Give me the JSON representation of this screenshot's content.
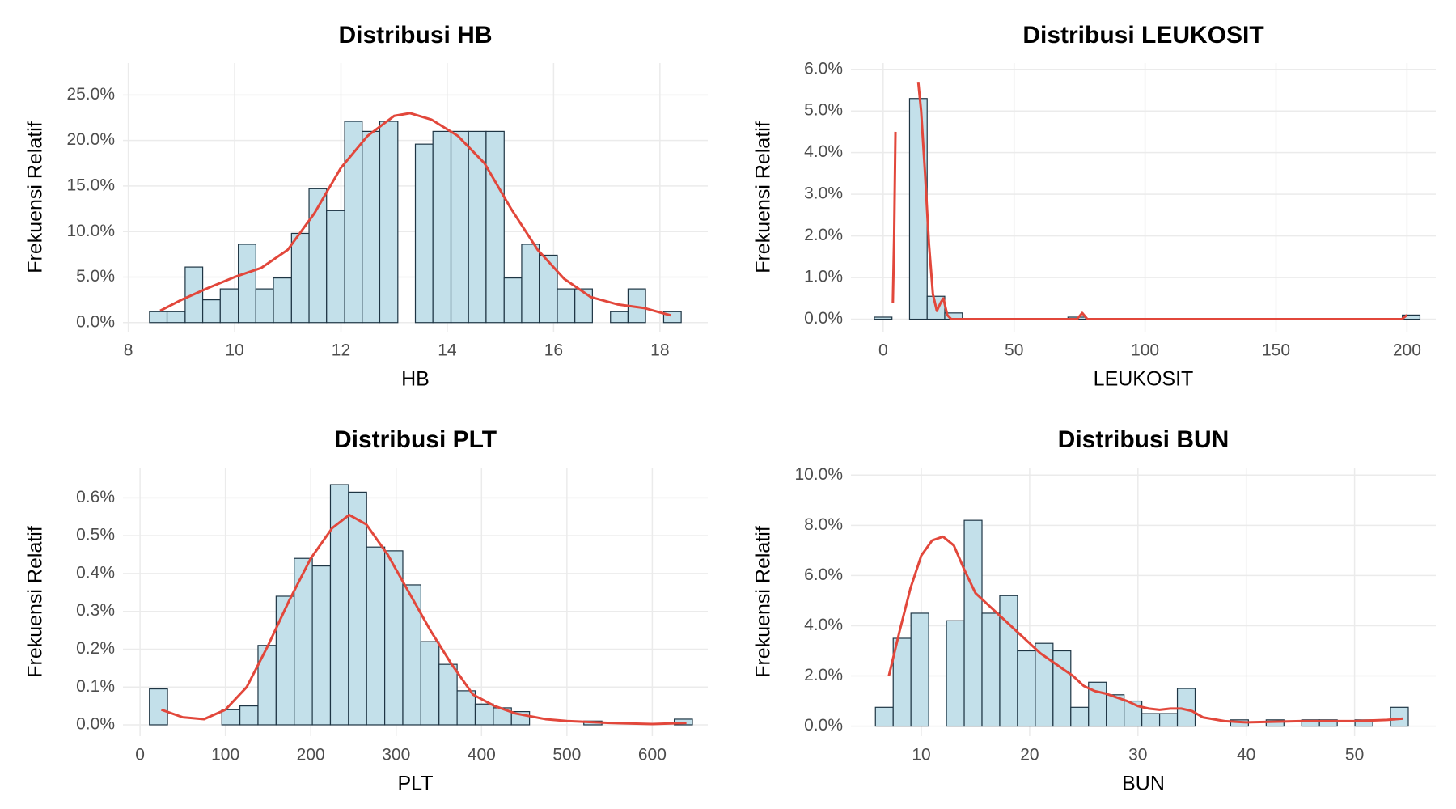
{
  "chart_data": [
    {
      "type": "histogram",
      "title": "Distribusi HB",
      "x_label": "HB",
      "y_label": "Frekuensi Relatif",
      "bins": [
        8.4,
        8.73,
        9.07,
        9.4,
        9.73,
        10.07,
        10.4,
        10.73,
        11.07,
        11.4,
        11.73,
        12.07,
        12.4,
        12.73,
        13.07,
        13.4,
        13.73,
        14.07,
        14.4,
        14.73,
        15.07,
        15.4,
        15.73,
        16.07,
        16.4,
        16.73,
        17.07,
        17.4,
        17.73,
        18.07,
        18.4
      ],
      "values": [
        1.2,
        1.2,
        6.1,
        2.5,
        3.7,
        8.6,
        3.7,
        4.9,
        9.8,
        14.7,
        12.3,
        22.1,
        21,
        22.1,
        0,
        19.6,
        21,
        21,
        21,
        21,
        4.9,
        8.6,
        7.4,
        3.7,
        3.7,
        0,
        1.2,
        3.7,
        0,
        1.2
      ],
      "color": "#c3e0ea",
      "edge_color": "#1e3544",
      "line": {
        "color": "#e2473b",
        "x": [
          8.6,
          9,
          9.5,
          10,
          10.5,
          11,
          11.5,
          12,
          12.5,
          13,
          13.3,
          13.7,
          14.2,
          14.7,
          15.2,
          15.7,
          16.2,
          16.7,
          17.2,
          17.7,
          18.2
        ],
        "values": [
          1.3,
          2.5,
          3.8,
          5,
          6,
          8,
          12,
          17,
          20.5,
          22.7,
          23,
          22.3,
          20.5,
          17.5,
          12.5,
          8,
          4.8,
          2.8,
          2,
          1.6,
          0.8
        ]
      },
      "xlim": [
        7.9,
        18.9
      ],
      "ylim": [
        -1,
        28.5
      ],
      "xticks": [
        8,
        10,
        12,
        14,
        16,
        18
      ],
      "yticks": [
        {
          "value": 0,
          "label": "0.0%"
        },
        {
          "value": 5,
          "label": "5.0%"
        },
        {
          "value": 10,
          "label": "10.0%"
        },
        {
          "value": 15,
          "label": "15.0%"
        },
        {
          "value": 20,
          "label": "20.0%"
        },
        {
          "value": 25,
          "label": "25.0%"
        }
      ],
      "grid": true
    },
    {
      "type": "histogram",
      "title": "Distribusi LEUKOSIT",
      "x_label": "LEUKOSIT",
      "y_label": "Frekuensi Relatif",
      "bins": [
        -3.36,
        3.36,
        10.08,
        16.8,
        23.52,
        30.24,
        36.96,
        43.68,
        50.4,
        57.12,
        63.84,
        70.56,
        77.28,
        84,
        90.72,
        97.44,
        104.16,
        110.88,
        117.6,
        124.32,
        131.04,
        137.76,
        144.48,
        151.2,
        157.92,
        164.64,
        171.36,
        178.08,
        184.8,
        191.52,
        198.24,
        204.96
      ],
      "values": [
        0.05,
        0,
        5.3,
        0.55,
        0.15,
        0,
        0,
        0,
        0,
        0,
        0,
        0.05,
        0,
        0,
        0,
        0,
        0,
        0,
        0,
        0,
        0,
        0,
        0,
        0,
        0,
        0,
        0,
        0,
        0,
        0,
        0.1
      ],
      "color": "#c3e0ea",
      "edge_color": "#1e3544",
      "line": {
        "color": "#e2473b",
        "x": [
          3.7,
          4.2,
          4.7,
          null,
          13.4,
          14.5,
          16,
          17.5,
          19,
          20.5,
          22,
          23,
          24.5,
          26,
          50,
          74,
          76,
          78,
          150,
          198,
          200
        ],
        "values": [
          0.4,
          2,
          4.5,
          null,
          5.7,
          5,
          3.5,
          1.8,
          0.6,
          0.2,
          0.4,
          0.5,
          0.1,
          0,
          0,
          0,
          0.15,
          0,
          0,
          0,
          0.1
        ]
      },
      "xlim": [
        -12.3,
        211
      ],
      "ylim": [
        -0.3,
        6.15
      ],
      "xticks": [
        0,
        50,
        100,
        150,
        200
      ],
      "yticks": [
        {
          "value": 0,
          "label": "0.0%"
        },
        {
          "value": 1,
          "label": "1.0%"
        },
        {
          "value": 2,
          "label": "2.0%"
        },
        {
          "value": 3,
          "label": "3.0%"
        },
        {
          "value": 4,
          "label": "4.0%"
        },
        {
          "value": 5,
          "label": "5.0%"
        },
        {
          "value": 6,
          "label": "6.0%"
        }
      ],
      "grid": true
    },
    {
      "type": "histogram",
      "title": "Distribusi PLT",
      "x_label": "PLT",
      "y_label": "Frekuensi Relatif",
      "bins": [
        11,
        32.2,
        53.4,
        74.6,
        95.8,
        117,
        138.2,
        159.4,
        180.6,
        201.8,
        223,
        244.2,
        265.4,
        286.6,
        307.8,
        329,
        350.2,
        371.4,
        392.6,
        413.8,
        435,
        456.2,
        477.4,
        498.6,
        519.8,
        541,
        562.2,
        583.4,
        604.6,
        625.8,
        647
      ],
      "values": [
        0.095,
        0,
        0,
        0,
        0.04,
        0.05,
        0.21,
        0.34,
        0.44,
        0.42,
        0.635,
        0.615,
        0.47,
        0.46,
        0.37,
        0.22,
        0.16,
        0.09,
        0.055,
        0.045,
        0.035,
        0,
        0,
        0,
        0.01,
        0,
        0,
        0,
        0,
        0.015
      ],
      "color": "#c3e0ea",
      "edge_color": "#1e3544",
      "line": {
        "color": "#e2473b",
        "x": [
          25,
          50,
          75,
          100,
          125,
          150,
          175,
          200,
          225,
          245,
          265,
          290,
          315,
          340,
          365,
          390,
          415,
          440,
          475,
          500,
          550,
          600,
          640
        ],
        "values": [
          0.04,
          0.02,
          0.015,
          0.04,
          0.1,
          0.21,
          0.33,
          0.44,
          0.52,
          0.555,
          0.53,
          0.45,
          0.35,
          0.25,
          0.16,
          0.08,
          0.05,
          0.03,
          0.015,
          0.01,
          0.005,
          0.002,
          0.005
        ]
      },
      "xlim": [
        -20,
        665
      ],
      "ylim": [
        -0.03,
        0.68
      ],
      "xticks": [
        0,
        100,
        200,
        300,
        400,
        500,
        600
      ],
      "yticks": [
        {
          "value": 0,
          "label": "0.0%"
        },
        {
          "value": 0.1,
          "label": "0.1%"
        },
        {
          "value": 0.2,
          "label": "0.2%"
        },
        {
          "value": 0.3,
          "label": "0.3%"
        },
        {
          "value": 0.4,
          "label": "0.4%"
        },
        {
          "value": 0.5,
          "label": "0.5%"
        },
        {
          "value": 0.6,
          "label": "0.6%"
        }
      ],
      "grid": true
    },
    {
      "type": "histogram",
      "title": "Distribusi BUN",
      "x_label": "BUN",
      "y_label": "Frekuensi Relatif",
      "bins": [
        5.76,
        7.4,
        9.04,
        10.68,
        12.32,
        13.96,
        15.6,
        17.24,
        18.88,
        20.52,
        22.16,
        23.8,
        25.44,
        27.08,
        28.72,
        30.36,
        32,
        33.64,
        35.28,
        36.92,
        38.56,
        40.2,
        41.84,
        43.48,
        45.12,
        46.76,
        48.4,
        50.04,
        51.68,
        53.32,
        54.96
      ],
      "values": [
        0.75,
        3.5,
        4.5,
        0,
        4.2,
        8.2,
        4.5,
        5.2,
        3,
        3.3,
        3,
        0.75,
        1.75,
        1.25,
        1,
        0.5,
        0.5,
        1.5,
        0,
        0,
        0.25,
        0,
        0.25,
        0,
        0.25,
        0.25,
        0,
        0.25,
        0,
        0.75
      ],
      "color": "#c3e0ea",
      "edge_color": "#1e3544",
      "line": {
        "color": "#e2473b",
        "x": [
          7,
          8,
          9,
          10,
          11,
          12,
          13,
          14,
          15,
          16,
          17,
          18,
          19,
          20,
          21,
          22,
          23,
          24,
          25,
          26,
          27,
          28,
          29,
          30,
          31,
          32,
          33,
          34,
          35,
          36,
          38,
          40,
          45,
          50,
          53,
          54.5
        ],
        "values": [
          2,
          3.8,
          5.5,
          6.8,
          7.4,
          7.55,
          7.2,
          6.2,
          5.3,
          4.9,
          4.5,
          4.1,
          3.7,
          3.3,
          2.9,
          2.6,
          2.3,
          2,
          1.6,
          1.4,
          1.3,
          1.15,
          1,
          0.8,
          0.7,
          0.65,
          0.7,
          0.7,
          0.6,
          0.35,
          0.2,
          0.15,
          0.2,
          0.2,
          0.25,
          0.3
        ]
      },
      "xlim": [
        3.5,
        57.5
      ],
      "ylim": [
        -0.4,
        10.3
      ],
      "xticks": [
        10,
        20,
        30,
        40,
        50
      ],
      "yticks": [
        {
          "value": 0,
          "label": "0.0%"
        },
        {
          "value": 2,
          "label": "2.0%"
        },
        {
          "value": 4,
          "label": "4.0%"
        },
        {
          "value": 6,
          "label": "6.0%"
        },
        {
          "value": 8,
          "label": "8.0%"
        },
        {
          "value": 10,
          "label": "10.0%"
        }
      ],
      "grid": true
    }
  ]
}
